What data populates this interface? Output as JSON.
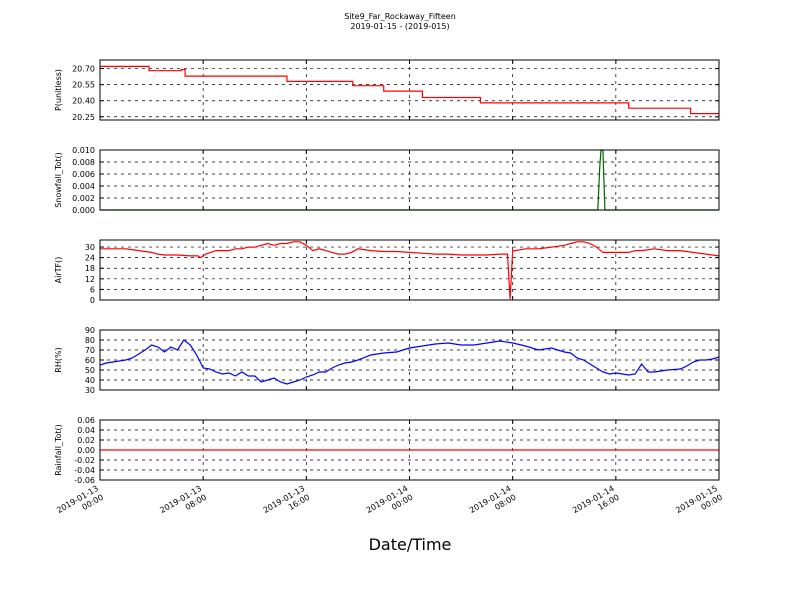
{
  "chart_data": {
    "type": "line",
    "title": "Site9_Far_Rockaway_Fifteen",
    "subtitle": "2019-01-15 - (2019-015)",
    "xlabel": "Date/Time",
    "x_ticks": [
      [
        "2019-01-13",
        "00:00"
      ],
      [
        "2019-01-13",
        "08:00"
      ],
      [
        "2019-01-13",
        "16:00"
      ],
      [
        "2019-01-14",
        "00:00"
      ],
      [
        "2019-01-14",
        "08:00"
      ],
      [
        "2019-01-14",
        "16:00"
      ],
      [
        "2019-01-15",
        "00:00"
      ]
    ],
    "x_range_hours": [
      0,
      48
    ],
    "grid": true,
    "panels": [
      {
        "ylabel": "P(unitless)",
        "color": "#ff0000",
        "ylim": [
          20.22,
          20.78
        ],
        "yticks": [
          "20.70",
          "20.55",
          "20.40",
          "20.25"
        ],
        "ytick_values": [
          20.7,
          20.55,
          20.4,
          20.25
        ],
        "x": [
          0,
          3.8,
          3.8,
          6.3,
          6.3,
          8.8,
          8.8,
          9.5,
          9.5,
          17.8,
          17.8,
          25.8,
          25.8,
          23.0,
          23.0,
          29.0,
          29.0,
          34.5,
          34.5,
          46.0,
          46.0,
          41.0,
          41.0,
          46.0,
          46.0,
          48.0
        ],
        "segments": [
          {
            "x0": 0,
            "x1": 3.8,
            "y": 20.72
          },
          {
            "x0": 3.8,
            "x1": 6.3,
            "y": 20.68
          },
          {
            "x0": 6.3,
            "x1": 6.6,
            "y": 20.69
          },
          {
            "x0": 6.6,
            "x1": 14.5,
            "y": 20.63
          },
          {
            "x0": 14.5,
            "x1": 19.6,
            "y": 20.58
          },
          {
            "x0": 19.6,
            "x1": 22.0,
            "y": 20.54
          },
          {
            "x0": 22.0,
            "x1": 25.0,
            "y": 20.49
          },
          {
            "x0": 25.0,
            "x1": 29.5,
            "y": 20.43
          },
          {
            "x0": 29.5,
            "x1": 41.0,
            "y": 20.38
          },
          {
            "x0": 41.0,
            "x1": 45.8,
            "y": 20.33
          },
          {
            "x0": 45.8,
            "x1": 48.0,
            "y": 20.28
          }
        ]
      },
      {
        "ylabel": "Snowfall_Tot()",
        "color": "#006400",
        "ylim": [
          0.0,
          0.01
        ],
        "yticks": [
          "0.010",
          "0.008",
          "0.006",
          "0.004",
          "0.002",
          "0.000"
        ],
        "ytick_values": [
          0.01,
          0.008,
          0.006,
          0.004,
          0.002,
          0.0
        ],
        "x": [
          0,
          38.6,
          38.75,
          38.85,
          39.0,
          39.15,
          48
        ],
        "y": [
          0,
          0,
          0.007,
          0.01,
          0.01,
          0,
          0
        ]
      },
      {
        "ylabel": "AirTF()",
        "color": "#ff0000",
        "ylim": [
          0,
          34
        ],
        "yticks": [
          "30",
          "24",
          "18",
          "12",
          "6",
          "0"
        ],
        "ytick_values": [
          30,
          24,
          18,
          12,
          6,
          0
        ],
        "x": [
          0,
          1,
          2,
          3,
          4,
          4.5,
          5,
          5.5,
          6,
          7,
          7.6,
          7.8,
          8.0,
          8.2,
          9,
          10,
          10.5,
          11,
          11.5,
          12,
          12.5,
          13,
          13.5,
          14,
          14.5,
          15,
          15.5,
          16,
          16.5,
          17,
          17.5,
          18,
          18.5,
          19,
          19.5,
          20,
          21,
          22,
          23,
          24,
          25,
          26,
          27,
          28,
          29,
          30,
          31,
          31.6,
          31.8,
          32.0,
          32.2,
          33,
          34,
          35,
          36,
          36.5,
          37,
          37.5,
          38,
          38.5,
          39,
          39.5,
          40,
          41,
          41.5,
          42,
          43,
          44,
          45,
          46,
          47,
          48
        ],
        "y": [
          29,
          29,
          29,
          28,
          27,
          26,
          25.5,
          25.5,
          25.5,
          25,
          25,
          24,
          25,
          26,
          28,
          28,
          29,
          29,
          30,
          30,
          31,
          32,
          31,
          32,
          32,
          33,
          33,
          31,
          28,
          29,
          28,
          27,
          26,
          26,
          27,
          29,
          28,
          27.5,
          27.5,
          27,
          26.5,
          26,
          26,
          25.5,
          25.5,
          25.5,
          26,
          26,
          0.5,
          28,
          28,
          29,
          29,
          30,
          31,
          32,
          33,
          33,
          32,
          30,
          27,
          27,
          27,
          27,
          28,
          28,
          29,
          28,
          28,
          27,
          26,
          25
        ]
      },
      {
        "ylabel": "RH(%)",
        "color": "#0000ff",
        "ylim": [
          30,
          90
        ],
        "yticks": [
          "90",
          "80",
          "70",
          "60",
          "50",
          "40",
          "30"
        ],
        "ytick_values": [
          90,
          80,
          70,
          60,
          50,
          40,
          30
        ],
        "x": [
          0,
          0.5,
          1,
          1.5,
          2,
          2.5,
          3,
          3.5,
          4,
          4.5,
          5,
          5.5,
          6,
          6.5,
          7,
          7.5,
          8,
          8.5,
          9,
          9.5,
          10,
          10.5,
          11,
          11.5,
          12,
          12.5,
          13,
          13.5,
          14,
          14.5,
          15,
          15.5,
          16,
          16.5,
          17,
          17.5,
          18,
          18.5,
          19,
          19.5,
          20,
          21,
          22,
          23,
          24,
          25,
          26,
          27,
          28,
          29,
          30,
          31,
          32,
          33,
          34,
          35,
          35.5,
          36,
          36.5,
          37,
          37.5,
          38,
          38.5,
          39,
          39.5,
          40,
          40.5,
          41,
          41.5,
          42,
          42.5,
          43,
          44,
          45,
          45.5,
          46,
          46.5,
          47,
          47.5,
          48
        ],
        "y": [
          55,
          57,
          58,
          59,
          60,
          62,
          66,
          70,
          75,
          73,
          68,
          73,
          70,
          80,
          75,
          65,
          52,
          51,
          48,
          46,
          47,
          44,
          48,
          44,
          44,
          38,
          40,
          42,
          38,
          36,
          38,
          40,
          43,
          45,
          48,
          48,
          52,
          55,
          57,
          58,
          60,
          65,
          67,
          68,
          72,
          74,
          76,
          77,
          75,
          75,
          77,
          79,
          77,
          74,
          70,
          72,
          70,
          68,
          67,
          62,
          60,
          56,
          52,
          48,
          46,
          47,
          46,
          45,
          46,
          56,
          48,
          48,
          50,
          51,
          54,
          58,
          60,
          60,
          61,
          63
        ]
      },
      {
        "ylabel": "Rainfall_Tot()",
        "color": "#ff0000",
        "ylim": [
          -0.06,
          0.06
        ],
        "yticks": [
          "0.06",
          "0.04",
          "0.02",
          "0.00",
          "-0.02",
          "-0.04",
          "-0.06"
        ],
        "ytick_values": [
          0.06,
          0.04,
          0.02,
          0.0,
          -0.02,
          -0.04,
          -0.06
        ],
        "x": [
          0,
          48
        ],
        "y": [
          0,
          0
        ]
      }
    ]
  }
}
